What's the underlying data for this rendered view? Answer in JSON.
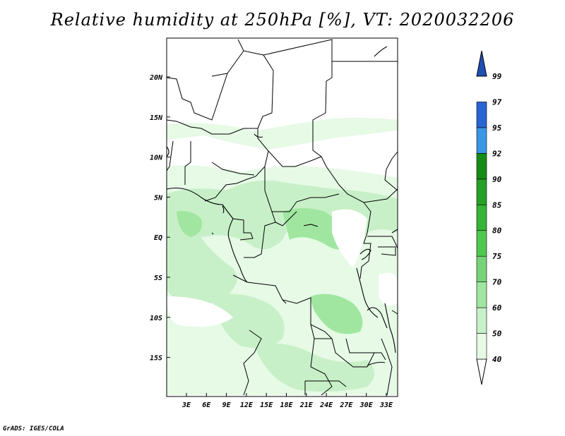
{
  "title": "Relative humidity at 250hPa [%], VT: 2020032206",
  "footer": "GrADS: IGES/COLA",
  "map": {
    "lat_labels": [
      "20N",
      "15N",
      "10N",
      "5N",
      "EQ",
      "5S",
      "10S",
      "15S"
    ],
    "lon_labels": [
      "3E",
      "6E",
      "9E",
      "12E",
      "15E",
      "18E",
      "21E",
      "24E",
      "27E",
      "30E",
      "33E"
    ]
  },
  "colorbar": {
    "labels": [
      "99",
      "97",
      "95",
      "92",
      "90",
      "85",
      "80",
      "75",
      "70",
      "60",
      "50",
      "40"
    ],
    "colors": [
      "#ffffff",
      "#e6fae6",
      "#c8f0c8",
      "#a0e6a0",
      "#78d278",
      "#50c850",
      "#37b437",
      "#26a026",
      "#168c16",
      "#3c96e6",
      "#2864d2",
      "#1e50b4"
    ]
  },
  "palette": {
    "green_light": "#e6fae6",
    "green_mid": "#c8f0c8",
    "green_dark": "#a0e6a0",
    "border": "#000000",
    "background": "#ffffff"
  }
}
